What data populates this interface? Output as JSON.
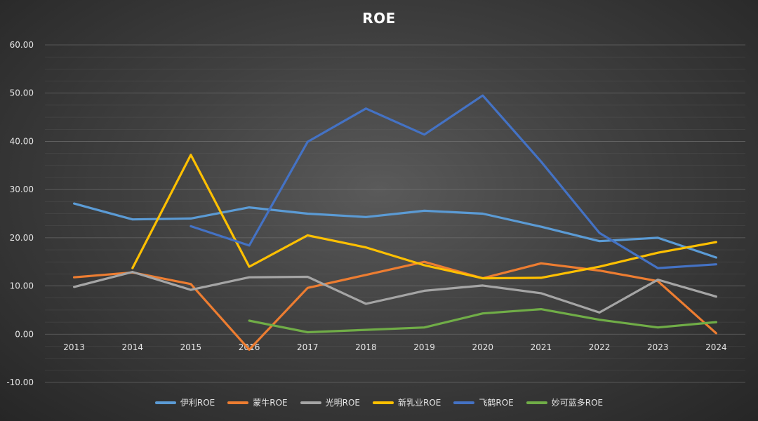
{
  "chart_data": {
    "type": "line",
    "title": "ROE",
    "xlabel": "",
    "ylabel": "",
    "ylim": [
      -10,
      60
    ],
    "yticks": [
      "60.00",
      "50.00",
      "40.00",
      "30.00",
      "20.00",
      "10.00",
      "0.00",
      "-10.00"
    ],
    "ytick_values": [
      60,
      50,
      40,
      30,
      20,
      10,
      0,
      -10
    ],
    "categories": [
      "2013",
      "2014",
      "2015",
      "2016",
      "2017",
      "2018",
      "2019",
      "2020",
      "2021",
      "2022",
      "2023",
      "2024"
    ],
    "grid": true,
    "legend_position": "bottom",
    "series": [
      {
        "name": "伊利ROE",
        "color": "#5b9bd5",
        "values": [
          27.1,
          23.8,
          24.0,
          26.3,
          25.0,
          24.3,
          25.6,
          25.0,
          22.3,
          19.3,
          20.0,
          15.9
        ]
      },
      {
        "name": "蒙牛ROE",
        "color": "#ed7d31",
        "values": [
          11.8,
          12.8,
          10.4,
          -3.2,
          9.6,
          12.3,
          15.0,
          11.6,
          14.7,
          13.2,
          11.0,
          0.2
        ]
      },
      {
        "name": "光明ROE",
        "color": "#a5a5a5",
        "values": [
          9.8,
          12.9,
          9.2,
          11.8,
          11.9,
          6.3,
          9.0,
          10.1,
          8.5,
          4.5,
          11.3,
          7.8
        ]
      },
      {
        "name": "新乳业ROE",
        "color": "#ffc000",
        "values": [
          null,
          13.7,
          37.2,
          14.0,
          20.5,
          18.0,
          14.3,
          11.6,
          11.7,
          14.0,
          16.9,
          19.1
        ]
      },
      {
        "name": "飞鹤ROE",
        "color": "#4472c4",
        "values": [
          null,
          null,
          22.4,
          18.4,
          39.9,
          46.8,
          41.4,
          49.5,
          35.8,
          21.0,
          13.7,
          14.5
        ]
      },
      {
        "name": "妙可蓝多ROE",
        "color": "#70ad47",
        "values": [
          null,
          null,
          null,
          2.8,
          0.4,
          0.9,
          1.4,
          4.3,
          5.2,
          3.0,
          1.4,
          2.5
        ]
      }
    ]
  }
}
